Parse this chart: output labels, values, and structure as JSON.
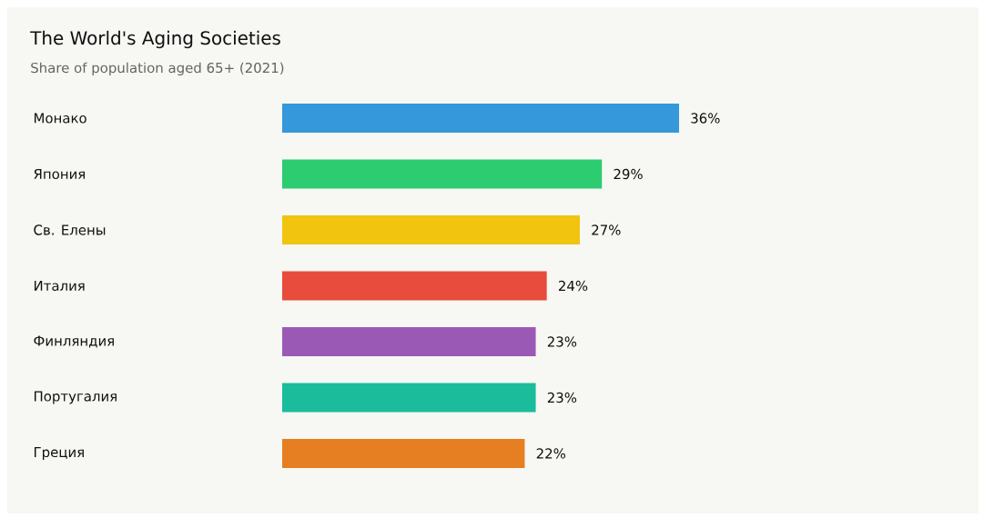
{
  "chart_data": {
    "type": "bar",
    "orientation": "horizontal",
    "title": "The World's Aging Societies",
    "subtitle": "Share of population aged 65+ (2021)",
    "categories": [
      "Монако",
      "Япония",
      "Св. Елены",
      "Италия",
      "Финляндия",
      "Португалия",
      "Греция"
    ],
    "values": [
      36,
      29,
      27,
      24,
      23,
      23,
      22
    ],
    "value_labels": [
      "36%",
      "29%",
      "27%",
      "24%",
      "23%",
      "23%",
      "22%"
    ],
    "colors": [
      "#3498db",
      "#2ecc71",
      "#f1c40f",
      "#e74c3c",
      "#9b59b6",
      "#1abc9c",
      "#e67e22"
    ]
  }
}
